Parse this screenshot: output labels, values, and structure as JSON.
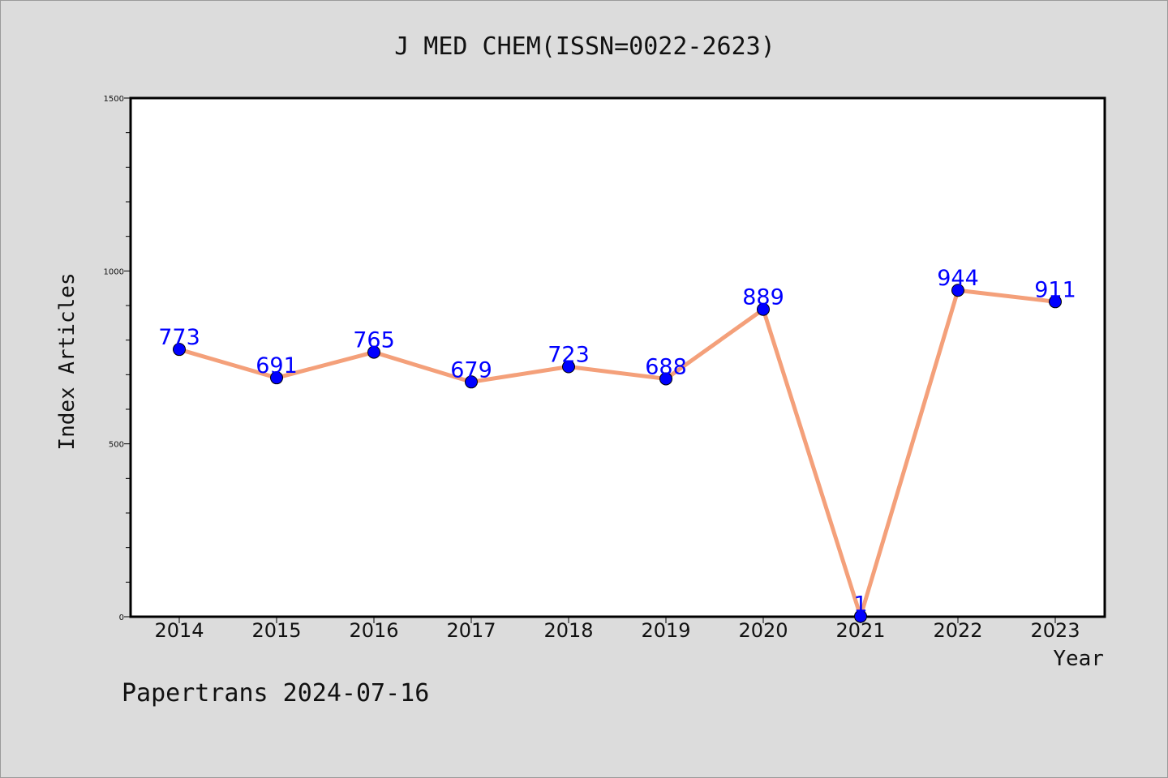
{
  "chart_data": {
    "type": "line",
    "title": "J MED CHEM(ISSN=0022-2623)",
    "xlabel": "Year",
    "ylabel": "Index Articles",
    "categories": [
      "2014",
      "2015",
      "2016",
      "2017",
      "2018",
      "2019",
      "2020",
      "2021",
      "2022",
      "2023"
    ],
    "values": [
      773,
      691,
      765,
      679,
      723,
      688,
      889,
      1,
      944,
      911
    ],
    "data_labels": [
      "773",
      "691",
      "765",
      "679",
      "723",
      "688",
      "889",
      "1",
      "944",
      "911"
    ],
    "ylim": [
      0,
      1500
    ],
    "y_ticks": [
      0,
      500,
      1000,
      1500
    ],
    "y_tick_labels": [
      "0",
      "500",
      "1000",
      "1500"
    ],
    "y_minor_step": 100,
    "grid": false,
    "legend": "none"
  },
  "colors": {
    "background": "#dcdcdc",
    "plot_area": "#ffffff",
    "line": "#f4a07a",
    "marker": "#0000ff",
    "data_label": "#0000ff"
  },
  "footer": "Papertrans 2024-07-16"
}
